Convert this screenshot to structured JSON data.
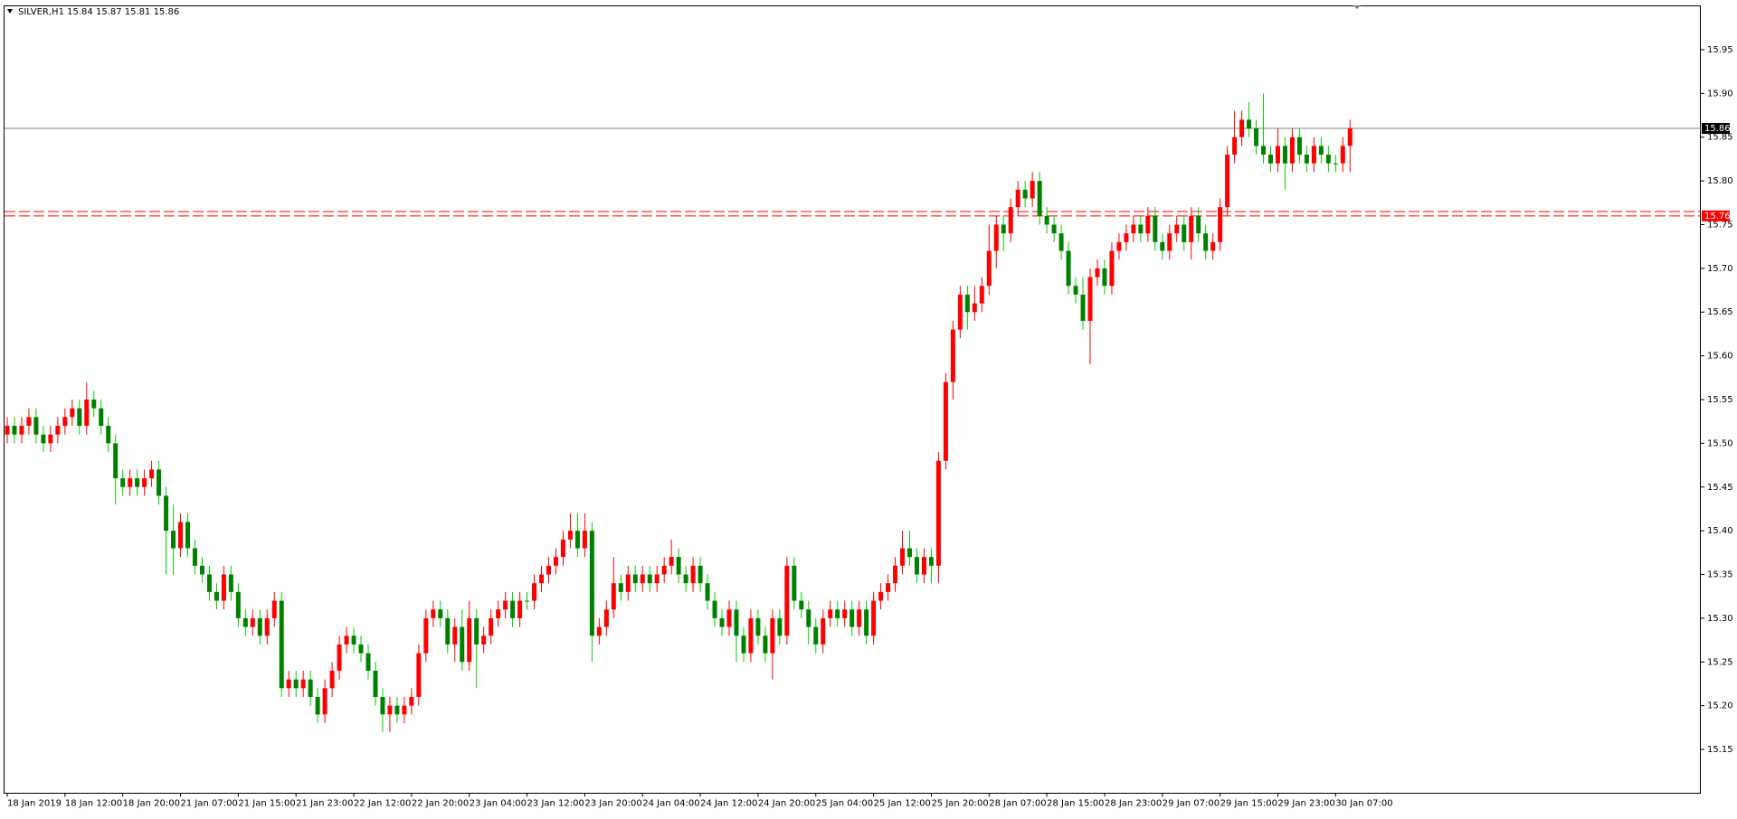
{
  "chart_data": {
    "type": "candlestick",
    "symbol": "SILVER,H1",
    "categories": [
      "18 Jan 2019",
      null,
      null,
      null,
      null,
      null,
      null,
      null,
      "18 Jan 12:00",
      null,
      null,
      null,
      null,
      null,
      null,
      null,
      "18 Jan 20:00",
      null,
      null,
      null,
      null,
      null,
      null,
      null,
      "21 Jan 07:00",
      null,
      null,
      null,
      null,
      null,
      null,
      null,
      "21 Jan 15:00",
      null,
      null,
      null,
      null,
      null,
      null,
      null,
      "21 Jan 23:00",
      null,
      null,
      null,
      null,
      null,
      null,
      null,
      "22 Jan 12:00",
      null,
      null,
      null,
      null,
      null,
      null,
      null,
      "22 Jan 20:00",
      null,
      null,
      null,
      null,
      null,
      null,
      null,
      "23 Jan 04:00",
      null,
      null,
      null,
      null,
      null,
      null,
      null,
      "23 Jan 12:00",
      null,
      null,
      null,
      null,
      null,
      null,
      null,
      "23 Jan 20:00",
      null,
      null,
      null,
      null,
      null,
      null,
      null,
      "24 Jan 04:00",
      null,
      null,
      null,
      null,
      null,
      null,
      null,
      "24 Jan 12:00",
      null,
      null,
      null,
      null,
      null,
      null,
      null,
      "24 Jan 20:00",
      null,
      null,
      null,
      null,
      null,
      null,
      null,
      "25 Jan 04:00",
      null,
      null,
      null,
      null,
      null,
      null,
      null,
      "25 Jan 12:00",
      null,
      null,
      null,
      null,
      null,
      null,
      null,
      "25 Jan 20:00",
      null,
      null,
      null,
      null,
      null,
      null,
      null,
      "28 Jan 07:00",
      null,
      null,
      null,
      null,
      null,
      null,
      null,
      "28 Jan 15:00",
      null,
      null,
      null,
      null,
      null,
      null,
      null,
      "28 Jan 23:00",
      null,
      null,
      null,
      null,
      null,
      null,
      null,
      "29 Jan 07:00",
      null,
      null,
      null,
      null,
      null,
      null,
      null,
      "29 Jan 15:00",
      null,
      null,
      null,
      null,
      null,
      null,
      null,
      "29 Jan 23:00",
      null,
      null,
      null,
      null,
      null,
      null,
      null,
      "30 Jan 07:00",
      null,
      null
    ],
    "open": [
      15.51,
      15.52,
      15.51,
      15.52,
      15.53,
      15.51,
      15.5,
      15.51,
      15.52,
      15.53,
      15.54,
      15.52,
      15.55,
      15.54,
      15.52,
      15.5,
      15.46,
      15.45,
      15.46,
      15.45,
      15.46,
      15.47,
      15.44,
      15.4,
      15.38,
      15.41,
      15.38,
      15.36,
      15.35,
      15.33,
      15.32,
      15.35,
      15.33,
      15.3,
      15.29,
      15.3,
      15.28,
      15.3,
      15.32,
      15.22,
      15.23,
      15.22,
      15.23,
      15.21,
      15.19,
      15.22,
      15.24,
      15.27,
      15.28,
      15.27,
      15.26,
      15.24,
      15.21,
      15.19,
      15.2,
      15.19,
      15.2,
      15.21,
      15.26,
      15.3,
      15.31,
      15.3,
      15.27,
      15.29,
      15.25,
      15.3,
      15.27,
      15.28,
      15.3,
      15.31,
      15.32,
      15.3,
      15.32,
      15.32,
      15.34,
      15.35,
      15.36,
      15.37,
      15.39,
      15.4,
      15.38,
      15.4,
      15.28,
      15.29,
      15.31,
      15.34,
      15.33,
      15.35,
      15.34,
      15.35,
      15.34,
      15.35,
      15.36,
      15.37,
      15.35,
      15.34,
      15.36,
      15.34,
      15.32,
      15.3,
      15.29,
      15.31,
      15.28,
      15.26,
      15.3,
      15.28,
      15.26,
      15.3,
      15.28,
      15.36,
      15.32,
      15.31,
      15.29,
      15.27,
      15.3,
      15.31,
      15.3,
      15.31,
      15.29,
      15.31,
      15.28,
      15.32,
      15.33,
      15.34,
      15.36,
      15.38,
      15.37,
      15.35,
      15.37,
      15.36,
      15.48,
      15.57,
      15.63,
      15.67,
      15.65,
      15.66,
      15.68,
      15.72,
      15.75,
      15.74,
      15.77,
      15.79,
      15.78,
      15.8,
      15.76,
      15.75,
      15.74,
      15.72,
      15.68,
      15.67,
      15.64,
      15.69,
      15.7,
      15.68,
      15.72,
      15.73,
      15.74,
      15.75,
      15.74,
      15.76,
      15.73,
      15.72,
      15.74,
      15.75,
      15.73,
      15.76,
      15.74,
      15.72,
      15.73,
      15.77,
      15.83,
      15.85,
      15.87,
      15.86,
      15.84,
      15.83,
      15.82,
      15.84,
      15.82,
      15.85,
      15.83,
      15.82,
      15.84,
      15.83,
      15.82,
      15.82,
      15.84
    ],
    "high": [
      15.53,
      15.53,
      15.53,
      15.54,
      15.54,
      15.52,
      15.52,
      15.53,
      15.54,
      15.55,
      15.55,
      15.57,
      15.56,
      15.55,
      15.53,
      15.51,
      15.47,
      15.47,
      15.47,
      15.47,
      15.48,
      15.48,
      15.45,
      15.43,
      15.42,
      15.42,
      15.39,
      15.37,
      15.36,
      15.34,
      15.36,
      15.36,
      15.34,
      15.31,
      15.31,
      15.31,
      15.31,
      15.33,
      15.33,
      15.24,
      15.24,
      15.24,
      15.24,
      15.22,
      15.23,
      15.25,
      15.28,
      15.29,
      15.29,
      15.28,
      15.27,
      15.25,
      15.22,
      15.21,
      15.21,
      15.21,
      15.22,
      15.27,
      15.31,
      15.32,
      15.32,
      15.31,
      15.3,
      15.31,
      15.32,
      15.31,
      15.29,
      15.31,
      15.32,
      15.33,
      15.33,
      15.33,
      15.33,
      15.35,
      15.36,
      15.37,
      15.38,
      15.4,
      15.42,
      15.42,
      15.42,
      15.41,
      15.3,
      15.32,
      15.37,
      15.35,
      15.36,
      15.36,
      15.36,
      15.36,
      15.36,
      15.37,
      15.39,
      15.38,
      15.36,
      15.37,
      15.37,
      15.35,
      15.33,
      15.31,
      15.32,
      15.32,
      15.29,
      15.31,
      15.31,
      15.29,
      15.31,
      15.31,
      15.37,
      15.37,
      15.33,
      15.32,
      15.3,
      15.31,
      15.32,
      15.32,
      15.32,
      15.32,
      15.32,
      15.32,
      15.33,
      15.34,
      15.35,
      15.37,
      15.4,
      15.4,
      15.38,
      15.38,
      15.38,
      15.49,
      15.58,
      15.64,
      15.68,
      15.68,
      15.68,
      15.69,
      15.75,
      15.76,
      15.76,
      15.78,
      15.8,
      15.8,
      15.81,
      15.81,
      15.77,
      15.76,
      15.75,
      15.73,
      15.69,
      15.69,
      15.7,
      15.71,
      15.71,
      15.73,
      15.74,
      15.75,
      15.76,
      15.76,
      15.77,
      15.77,
      15.74,
      15.75,
      15.76,
      15.76,
      15.77,
      15.77,
      15.75,
      15.74,
      15.78,
      15.84,
      15.88,
      15.88,
      15.89,
      15.87,
      15.9,
      15.84,
      15.86,
      15.85,
      15.86,
      15.86,
      15.84,
      15.85,
      15.85,
      15.84,
      15.83,
      15.85,
      15.87
    ],
    "low": [
      15.5,
      15.5,
      15.5,
      15.51,
      15.5,
      15.49,
      15.49,
      15.5,
      15.51,
      15.52,
      15.51,
      15.51,
      15.53,
      15.51,
      15.49,
      15.43,
      15.44,
      15.44,
      15.44,
      15.44,
      15.45,
      15.43,
      15.35,
      15.35,
      15.37,
      15.37,
      15.35,
      15.34,
      15.32,
      15.31,
      15.31,
      15.32,
      15.29,
      15.28,
      15.28,
      15.27,
      15.27,
      15.29,
      15.21,
      15.21,
      15.21,
      15.21,
      15.2,
      15.18,
      15.18,
      15.21,
      15.23,
      15.26,
      15.26,
      15.25,
      15.23,
      15.2,
      15.17,
      15.17,
      15.18,
      15.18,
      15.19,
      15.2,
      15.25,
      15.29,
      15.29,
      15.26,
      15.25,
      15.24,
      15.24,
      15.22,
      15.26,
      15.27,
      15.29,
      15.3,
      15.29,
      15.29,
      15.31,
      15.31,
      15.33,
      15.34,
      15.35,
      15.36,
      15.38,
      15.37,
      15.37,
      15.25,
      15.27,
      15.28,
      15.3,
      15.32,
      15.32,
      15.33,
      15.33,
      15.33,
      15.33,
      15.34,
      15.35,
      15.34,
      15.33,
      15.33,
      15.33,
      15.31,
      15.29,
      15.28,
      15.28,
      15.25,
      15.25,
      15.25,
      15.27,
      15.25,
      15.23,
      15.27,
      15.27,
      15.31,
      15.3,
      15.27,
      15.26,
      15.26,
      15.29,
      15.29,
      15.29,
      15.28,
      15.28,
      15.27,
      15.27,
      15.31,
      15.32,
      15.33,
      15.35,
      15.36,
      15.34,
      15.34,
      15.34,
      15.34,
      15.47,
      15.55,
      15.62,
      15.63,
      15.64,
      15.65,
      15.67,
      15.7,
      15.72,
      15.73,
      15.76,
      15.77,
      15.77,
      15.75,
      15.74,
      15.73,
      15.71,
      15.67,
      15.66,
      15.63,
      15.59,
      15.68,
      15.67,
      15.67,
      15.71,
      15.72,
      15.73,
      15.73,
      15.73,
      15.72,
      15.71,
      15.71,
      15.73,
      15.72,
      15.71,
      15.73,
      15.71,
      15.71,
      15.72,
      15.76,
      15.82,
      15.84,
      15.85,
      15.83,
      15.82,
      15.81,
      15.81,
      15.79,
      15.81,
      15.82,
      15.81,
      15.81,
      15.82,
      15.81,
      15.81,
      15.81,
      15.81
    ],
    "close": [
      15.52,
      15.51,
      15.52,
      15.53,
      15.51,
      15.5,
      15.51,
      15.52,
      15.53,
      15.54,
      15.52,
      15.55,
      15.54,
      15.52,
      15.5,
      15.46,
      15.45,
      15.46,
      15.45,
      15.46,
      15.47,
      15.44,
      15.4,
      15.38,
      15.41,
      15.38,
      15.36,
      15.35,
      15.33,
      15.32,
      15.35,
      15.33,
      15.3,
      15.29,
      15.3,
      15.28,
      15.3,
      15.32,
      15.22,
      15.23,
      15.22,
      15.23,
      15.21,
      15.19,
      15.22,
      15.24,
      15.27,
      15.28,
      15.27,
      15.26,
      15.24,
      15.21,
      15.19,
      15.2,
      15.19,
      15.2,
      15.21,
      15.26,
      15.3,
      15.31,
      15.3,
      15.27,
      15.29,
      15.25,
      15.3,
      15.27,
      15.28,
      15.3,
      15.31,
      15.32,
      15.3,
      15.32,
      15.32,
      15.34,
      15.35,
      15.36,
      15.37,
      15.39,
      15.4,
      15.38,
      15.4,
      15.28,
      15.29,
      15.31,
      15.34,
      15.33,
      15.35,
      15.34,
      15.35,
      15.34,
      15.35,
      15.36,
      15.37,
      15.35,
      15.34,
      15.36,
      15.34,
      15.32,
      15.3,
      15.29,
      15.31,
      15.28,
      15.26,
      15.3,
      15.28,
      15.26,
      15.3,
      15.28,
      15.36,
      15.32,
      15.31,
      15.29,
      15.27,
      15.3,
      15.31,
      15.3,
      15.31,
      15.29,
      15.31,
      15.28,
      15.32,
      15.33,
      15.34,
      15.36,
      15.38,
      15.37,
      15.35,
      15.37,
      15.36,
      15.48,
      15.57,
      15.63,
      15.67,
      15.65,
      15.66,
      15.68,
      15.72,
      15.75,
      15.74,
      15.77,
      15.79,
      15.78,
      15.8,
      15.76,
      15.75,
      15.74,
      15.72,
      15.68,
      15.67,
      15.64,
      15.69,
      15.7,
      15.68,
      15.72,
      15.73,
      15.74,
      15.75,
      15.74,
      15.76,
      15.73,
      15.72,
      15.74,
      15.75,
      15.73,
      15.76,
      15.74,
      15.72,
      15.73,
      15.77,
      15.83,
      15.85,
      15.87,
      15.86,
      15.84,
      15.83,
      15.82,
      15.84,
      15.82,
      15.85,
      15.83,
      15.82,
      15.84,
      15.83,
      15.82,
      15.82,
      15.84,
      15.86
    ],
    "ylim": [
      15.1,
      16.0
    ],
    "yticks": [
      15.15,
      {
        "value": 15.2,
        "label": "15.20"
      },
      15.25,
      {
        "value": 15.3,
        "label": "15.30"
      },
      15.35,
      {
        "value": 15.4,
        "label": "15.40"
      },
      15.45,
      {
        "value": 15.5,
        "label": "15.50"
      },
      15.55,
      {
        "value": 15.6,
        "label": "15.60"
      },
      15.65,
      {
        "value": 15.7,
        "label": "15.70"
      },
      15.75,
      {
        "value": 15.8,
        "label": "15.80"
      },
      15.85,
      {
        "value": 15.9,
        "label": "15.90"
      },
      15.95
    ],
    "hlines": [
      15.765,
      15.76
    ],
    "colors": {
      "up": "#ff0000",
      "down": "#008000",
      "down_wick": "#00d000",
      "hline": "#ff0000",
      "price_line": "#808080"
    },
    "grid": false
  }
}
